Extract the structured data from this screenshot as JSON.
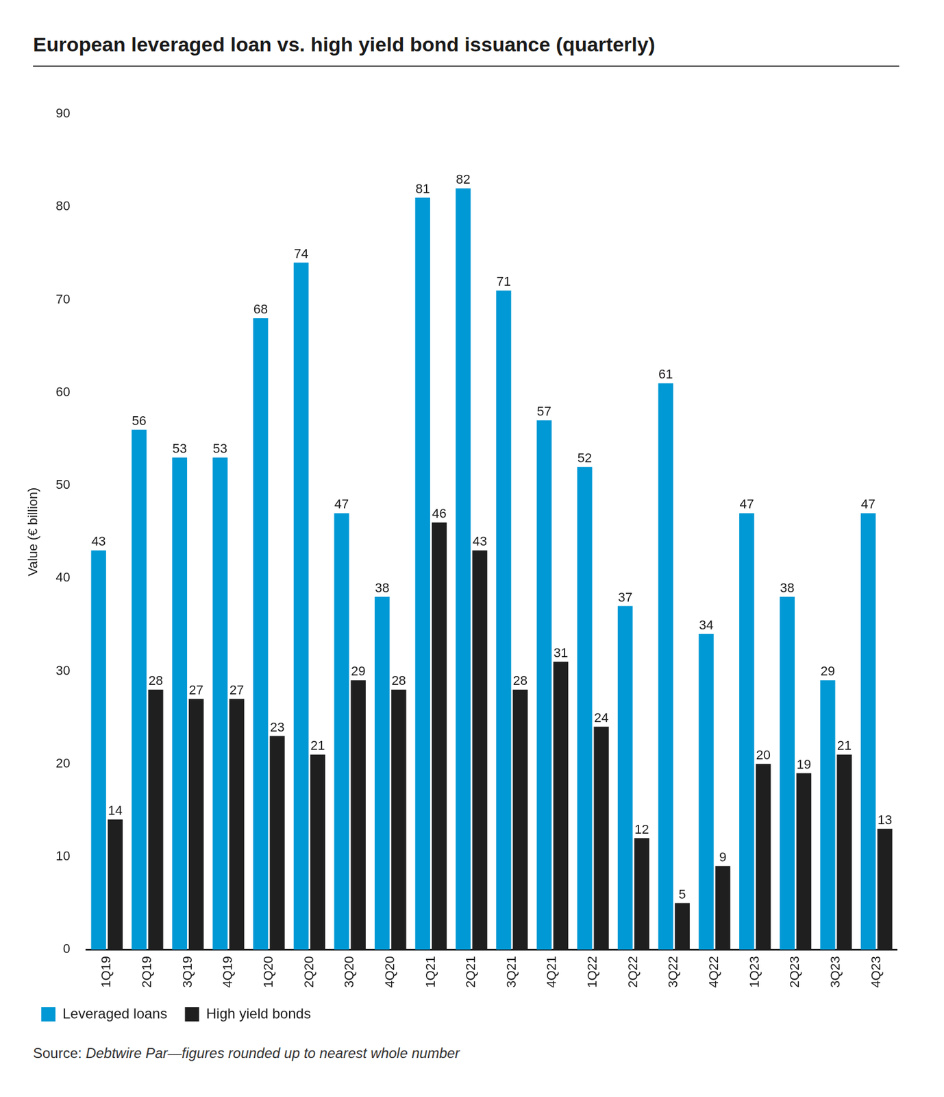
{
  "chart_data": {
    "type": "bar",
    "title": "European leveraged loan vs. high yield bond issuance (quarterly)",
    "y_label": "Value (€ billion)",
    "note": "Source: Debtwire Par—figures rounded up to nearest whole number",
    "categories": [
      "1Q19",
      "2Q19",
      "3Q19",
      "4Q19",
      "1Q20",
      "2Q20",
      "3Q20",
      "4Q20",
      "1Q21",
      "2Q21",
      "3Q21",
      "4Q21",
      "1Q22",
      "2Q22",
      "3Q22",
      "4Q22",
      "1Q23",
      "2Q23",
      "3Q23",
      "4Q23"
    ],
    "series": [
      {
        "name": "Leveraged loans",
        "color": "#0099d5",
        "values": [
          43,
          56,
          53,
          53,
          68,
          74,
          47,
          38,
          81,
          82,
          71,
          57,
          52,
          37,
          61,
          34,
          47,
          38,
          29,
          47
        ]
      },
      {
        "name": "High yield bonds",
        "color": "#1f1f1f",
        "values": [
          14,
          28,
          27,
          27,
          23,
          21,
          29,
          28,
          46,
          43,
          28,
          31,
          24,
          12,
          5,
          9,
          20,
          19,
          21,
          13
        ]
      }
    ],
    "ylim": [
      0,
      90
    ],
    "yticks": [
      0,
      10,
      20,
      30,
      40,
      50,
      60,
      70,
      80,
      90
    ],
    "grid": false,
    "legend": "lower left",
    "data_labels": true
  }
}
